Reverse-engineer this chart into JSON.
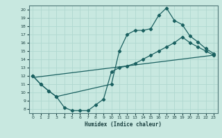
{
  "title": "",
  "xlabel": "Humidex (Indice chaleur)",
  "bg_color": "#c8e8e0",
  "grid_color": "#b0d8d0",
  "line_color": "#1a6060",
  "xlim": [
    -0.5,
    23.5
  ],
  "ylim": [
    7.5,
    20.5
  ],
  "yticks": [
    8,
    9,
    10,
    11,
    12,
    13,
    14,
    15,
    16,
    17,
    18,
    19,
    20
  ],
  "xticks": [
    0,
    1,
    2,
    3,
    4,
    5,
    6,
    7,
    8,
    9,
    10,
    11,
    12,
    13,
    14,
    15,
    16,
    17,
    18,
    19,
    20,
    21,
    22,
    23
  ],
  "line1_x": [
    0,
    1,
    2,
    3,
    10,
    11,
    12,
    13,
    14,
    15,
    16,
    17,
    18,
    19,
    20,
    21,
    22,
    23
  ],
  "line1_y": [
    12,
    11,
    10.2,
    9.5,
    11.0,
    15.0,
    17.0,
    17.5,
    17.5,
    17.7,
    19.3,
    20.2,
    18.7,
    18.2,
    16.8,
    16.1,
    15.3,
    14.7
  ],
  "line2_x": [
    0,
    1,
    2,
    3,
    4,
    5,
    6,
    7,
    8,
    9,
    10,
    11,
    12,
    13,
    14,
    15,
    16,
    17,
    18,
    19,
    20,
    21,
    22,
    23
  ],
  "line2_y": [
    12,
    11,
    10.2,
    9.5,
    8.2,
    7.8,
    7.8,
    7.8,
    8.5,
    9.2,
    12.5,
    13.0,
    13.2,
    13.5,
    14.0,
    14.5,
    15.0,
    15.5,
    16.0,
    16.7,
    16.0,
    15.5,
    15.0,
    14.5
  ],
  "line3_x": [
    0,
    23
  ],
  "line3_y": [
    11.8,
    14.5
  ]
}
